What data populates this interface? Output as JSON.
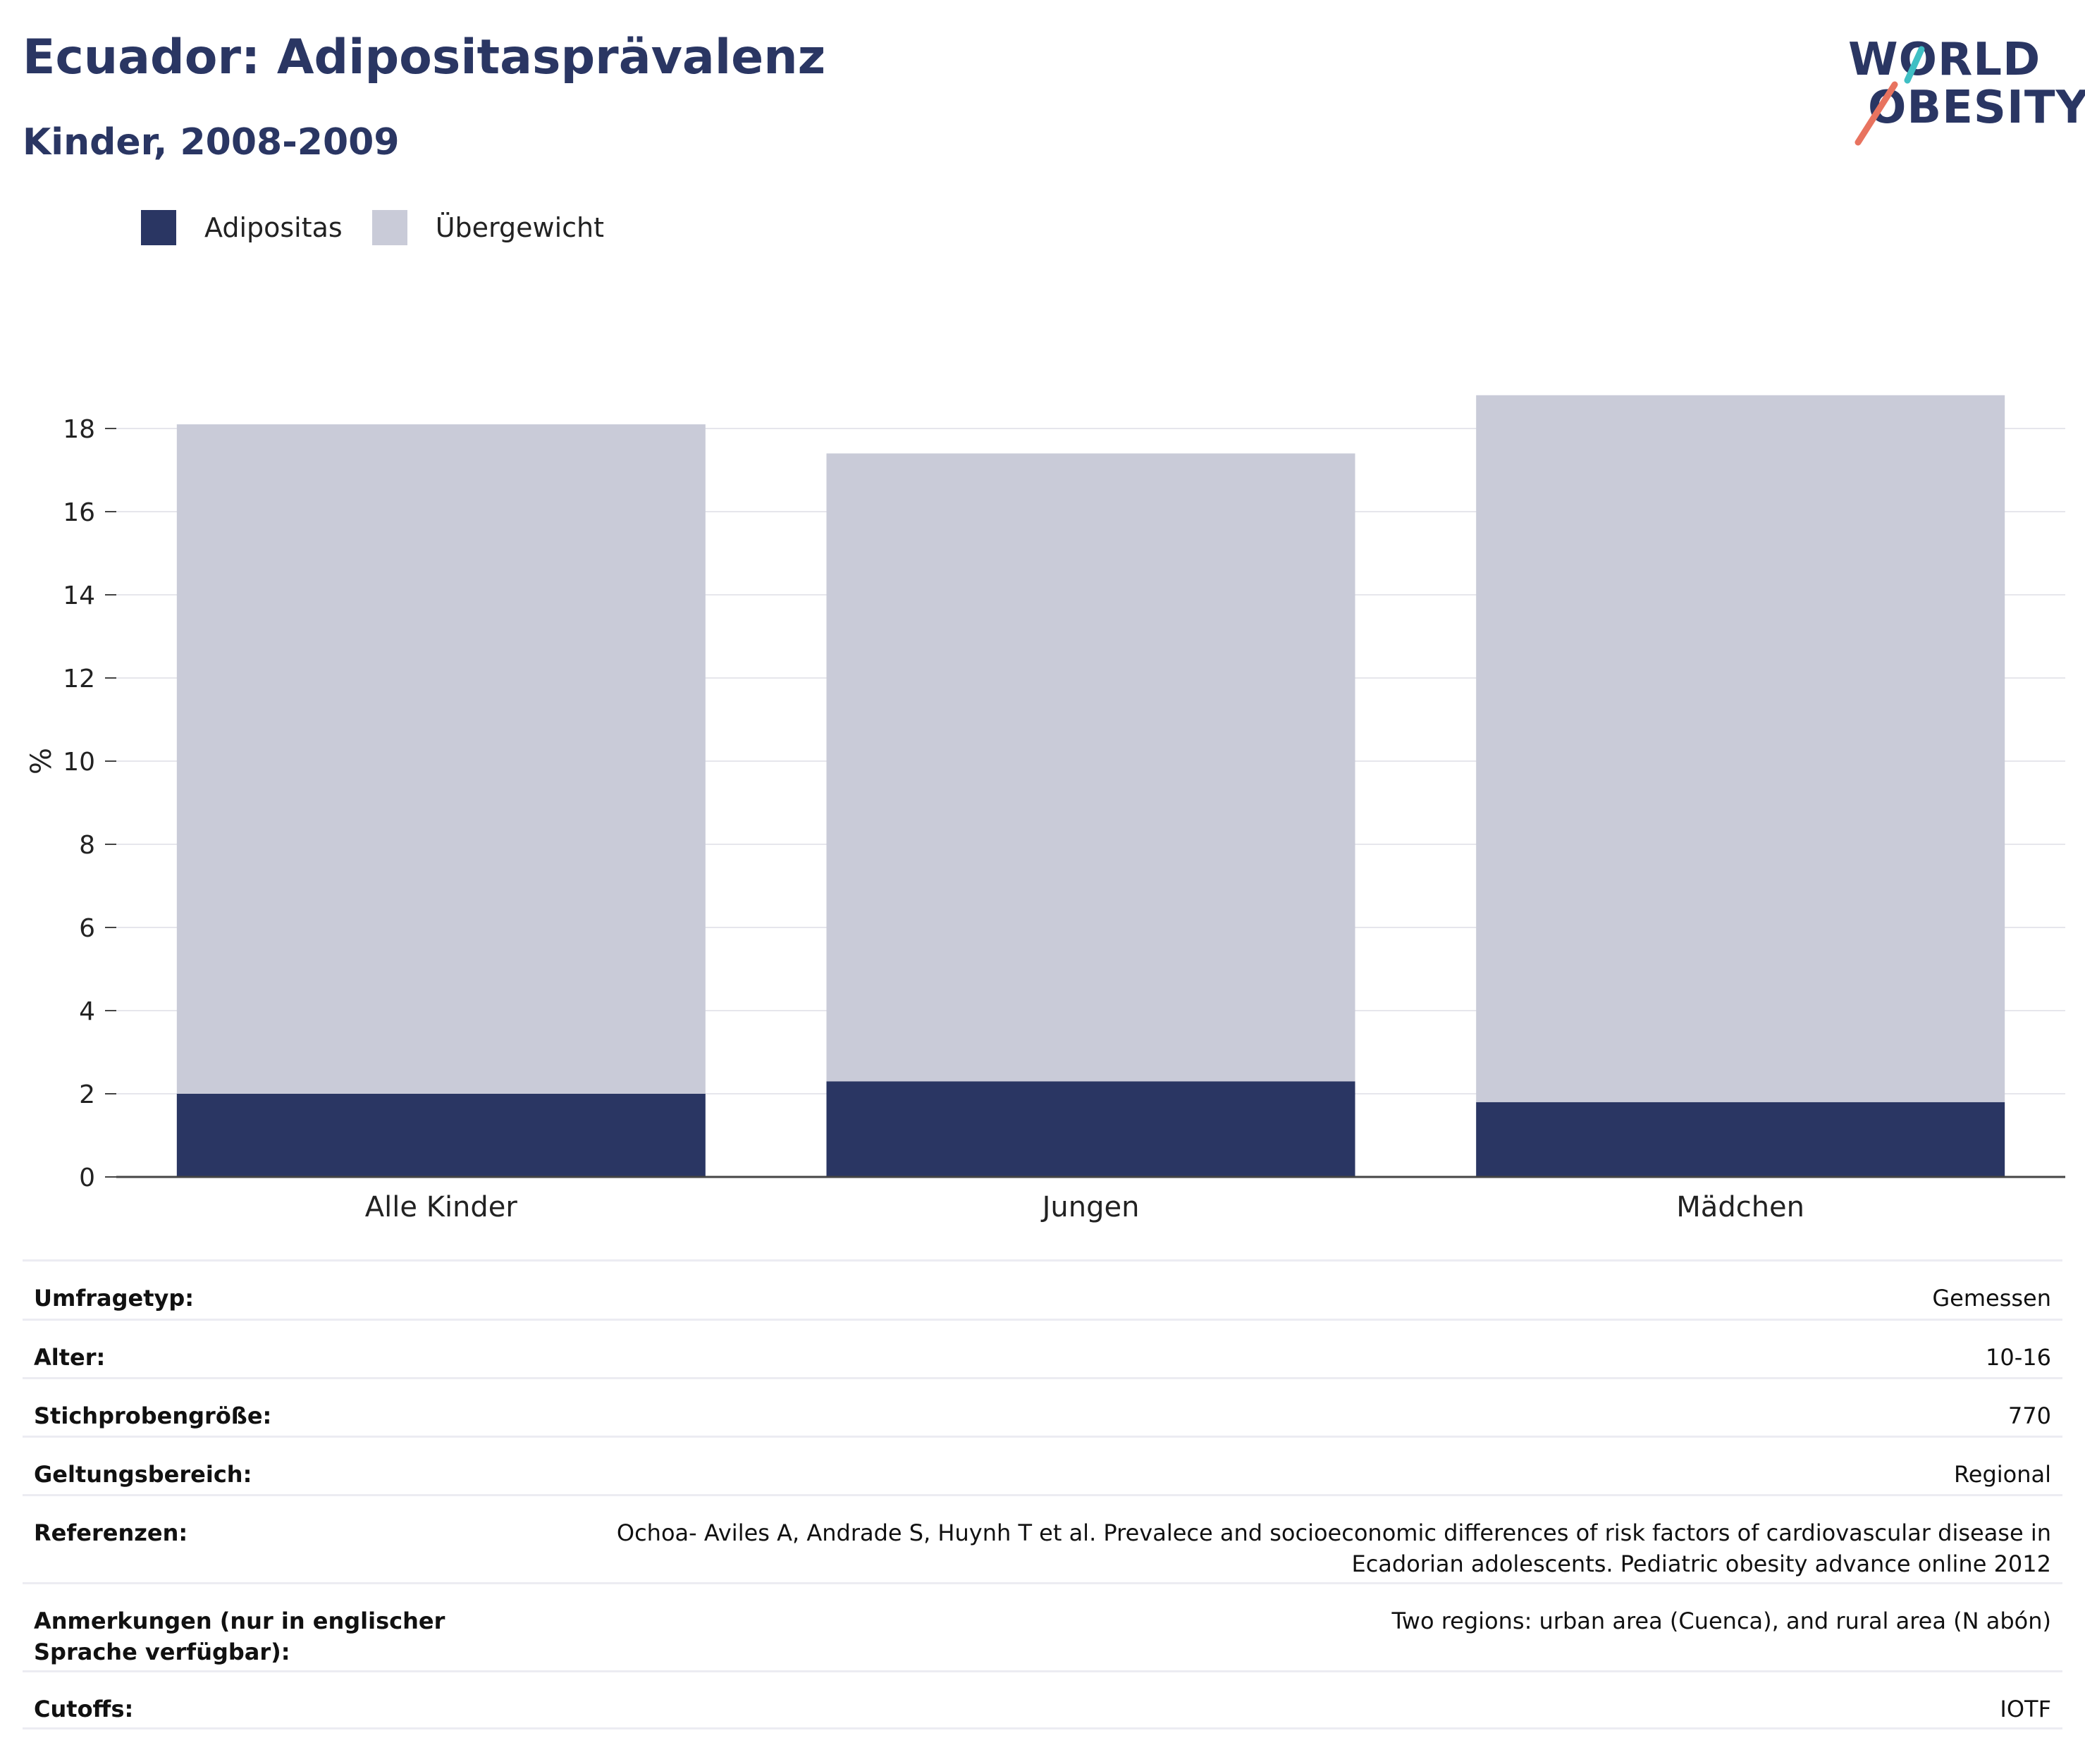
{
  "header": {
    "title": "Ecuador: Adipositasprävalenz",
    "subtitle": "Kinder, 2008-2009"
  },
  "logo": {
    "line1": "WORLD",
    "line2": "OBESITY",
    "accent_colors": [
      "#3fbfc4",
      "#e8735f"
    ]
  },
  "legend": {
    "items": [
      {
        "label": "Adipositas",
        "color": "#2a3663"
      },
      {
        "label": "Übergewicht",
        "color": "#c9cbd8"
      }
    ]
  },
  "chart_data": {
    "type": "bar",
    "stacked": true,
    "categories": [
      "Alle Kinder",
      "Jungen",
      "Mädchen"
    ],
    "series": [
      {
        "name": "Adipositas",
        "values": [
          2.0,
          2.3,
          1.8
        ],
        "color": "#2a3663"
      },
      {
        "name": "Übergewicht",
        "values": [
          16.1,
          15.1,
          17.0
        ],
        "color": "#c9cbd8"
      }
    ],
    "ylabel": "%",
    "xlabel": "",
    "ylim": [
      0,
      18.8
    ],
    "yticks": [
      0,
      2,
      4,
      6,
      8,
      10,
      12,
      14,
      16,
      18
    ],
    "grid": true,
    "legend_position": "top-left"
  },
  "info": [
    {
      "label": "Umfragetyp:",
      "value": "Gemessen"
    },
    {
      "label": "Alter:",
      "value": "10-16"
    },
    {
      "label": "Stichprobengröße:",
      "value": "770"
    },
    {
      "label": "Geltungsbereich:",
      "value": "Regional"
    },
    {
      "label": "Referenzen:",
      "value": "Ochoa- Aviles A, Andrade S, Huynh T et al. Prevalece and socioeconomic differences of risk factors of cardiovascular disease in Ecadorian adolescents. Pediatric obesity advance online 2012"
    },
    {
      "label": "Anmerkungen (nur in englischer Sprache verfügbar):",
      "value": "Two regions: urban area (Cuenca), and rural area (N abón)"
    },
    {
      "label": "Cutoffs:",
      "value": "IOTF"
    }
  ]
}
